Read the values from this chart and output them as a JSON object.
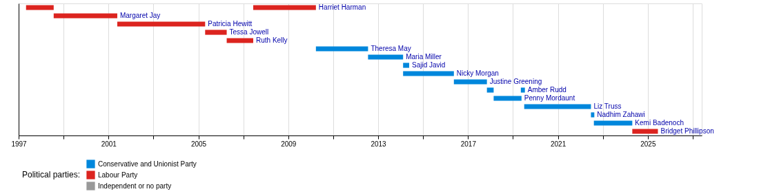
{
  "chart_data": {
    "type": "bar",
    "orientation": "horizontal",
    "legend_title": "Political parties:",
    "legend": "bottom left",
    "grid": "x",
    "tick_labels": "x",
    "categories": [
      "Harriet Harman",
      "Margaret Jay",
      "Patricia Hewitt",
      "Tessa Jowell",
      "Ruth Kelly",
      "Theresa May",
      "Maria Miller",
      "Sajid Javid",
      "Nicky Morgan",
      "Justine Greening",
      "Amber Rudd",
      "Penny Mordaunt",
      "Liz Truss",
      "Nadhim Zahawi",
      "Kemi Badenoch",
      "Bridget Phillipson"
    ],
    "series": [
      {
        "name": "Conservative and Unionist Party",
        "color": "#0087dc",
        "base": [
          null,
          null,
          null,
          null,
          null,
          2010.23,
          2012.55,
          2014.11,
          2014.11,
          2016.37,
          2019.35,
          2018.14,
          2019.5,
          2022.47,
          2022.6,
          null
        ],
        "values": [
          null,
          null,
          null,
          null,
          null,
          2.32,
          1.56,
          0.27,
          2.26,
          1.47,
          0.18,
          1.24,
          2.97,
          0.15,
          1.71,
          null
        ]
      },
      {
        "name": "Labour Party",
        "color": "#dc241f",
        "base": [
          2007.44,
          1998.56,
          2001.39,
          2005.3,
          2006.26,
          null,
          null,
          null,
          null,
          null,
          null,
          null,
          null,
          null,
          null,
          2024.31
        ],
        "values": [
          2.79,
          2.83,
          3.91,
          0.96,
          1.18,
          null,
          null,
          null,
          null,
          null,
          null,
          null,
          null,
          null,
          null,
          1.14
        ]
      },
      {
        "name": "Independent or no party",
        "color": "#999999",
        "base": [
          null,
          null,
          null,
          null,
          null,
          null,
          null,
          null,
          null,
          null,
          null,
          null,
          null,
          null,
          null,
          null
        ],
        "values": [
          null,
          null,
          null,
          null,
          null,
          null,
          null,
          null,
          null,
          null,
          null,
          null,
          null,
          null,
          null,
          null
        ]
      },
      {
        "color": "#dc241f",
        "base": [
          1997.33,
          null,
          null,
          null,
          null,
          null,
          null,
          null,
          null,
          null,
          null,
          null,
          null,
          null,
          null,
          null
        ],
        "values": [
          1.23,
          null,
          null,
          null,
          null,
          null,
          null,
          null,
          null,
          null,
          null,
          null,
          null,
          null,
          null,
          null
        ]
      },
      {
        "color": "#0087dc",
        "base": [
          null,
          null,
          null,
          null,
          null,
          null,
          null,
          null,
          null,
          null,
          2017.84,
          null,
          null,
          null,
          null,
          null
        ],
        "values": [
          null,
          null,
          null,
          null,
          null,
          null,
          null,
          null,
          null,
          null,
          0.3,
          null,
          null,
          null,
          null,
          null
        ]
      }
    ],
    "xlim": [
      1997,
      2027.4
    ],
    "xticks": [
      1997,
      {
        "value": 1999,
        "label": null
      },
      2001,
      {
        "value": 2003,
        "label": null
      },
      2005,
      {
        "value": 2007,
        "label": null
      },
      2009,
      {
        "value": 2011,
        "label": null
      },
      2013,
      {
        "value": 2015,
        "label": null
      },
      2017,
      {
        "value": 2019,
        "label": null
      },
      2021,
      {
        "value": 2023,
        "label": null
      },
      2025,
      {
        "value": 2027,
        "label": null
      }
    ]
  }
}
